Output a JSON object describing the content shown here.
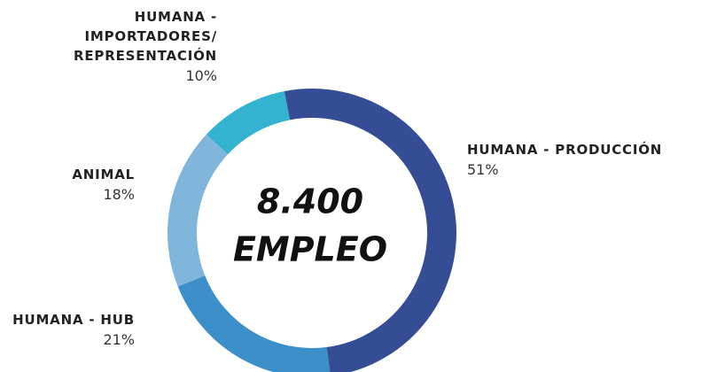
{
  "chart_data": {
    "type": "donut",
    "center_value": "8.400",
    "center_label": "EMPLEO",
    "categories": [
      "HUMANA - PRODUCCIÓN",
      "HUMANA - HUB",
      "ANIMAL",
      "HUMANA -\nIMPORTADORES/\nREPRESENTACIÓN"
    ],
    "values": [
      51,
      21,
      18,
      10
    ],
    "value_labels": [
      "51%",
      "21%",
      "18%",
      "10%"
    ],
    "colors": [
      "#344d95",
      "#3d8fca",
      "#80b5dc",
      "#33b3d0"
    ]
  }
}
